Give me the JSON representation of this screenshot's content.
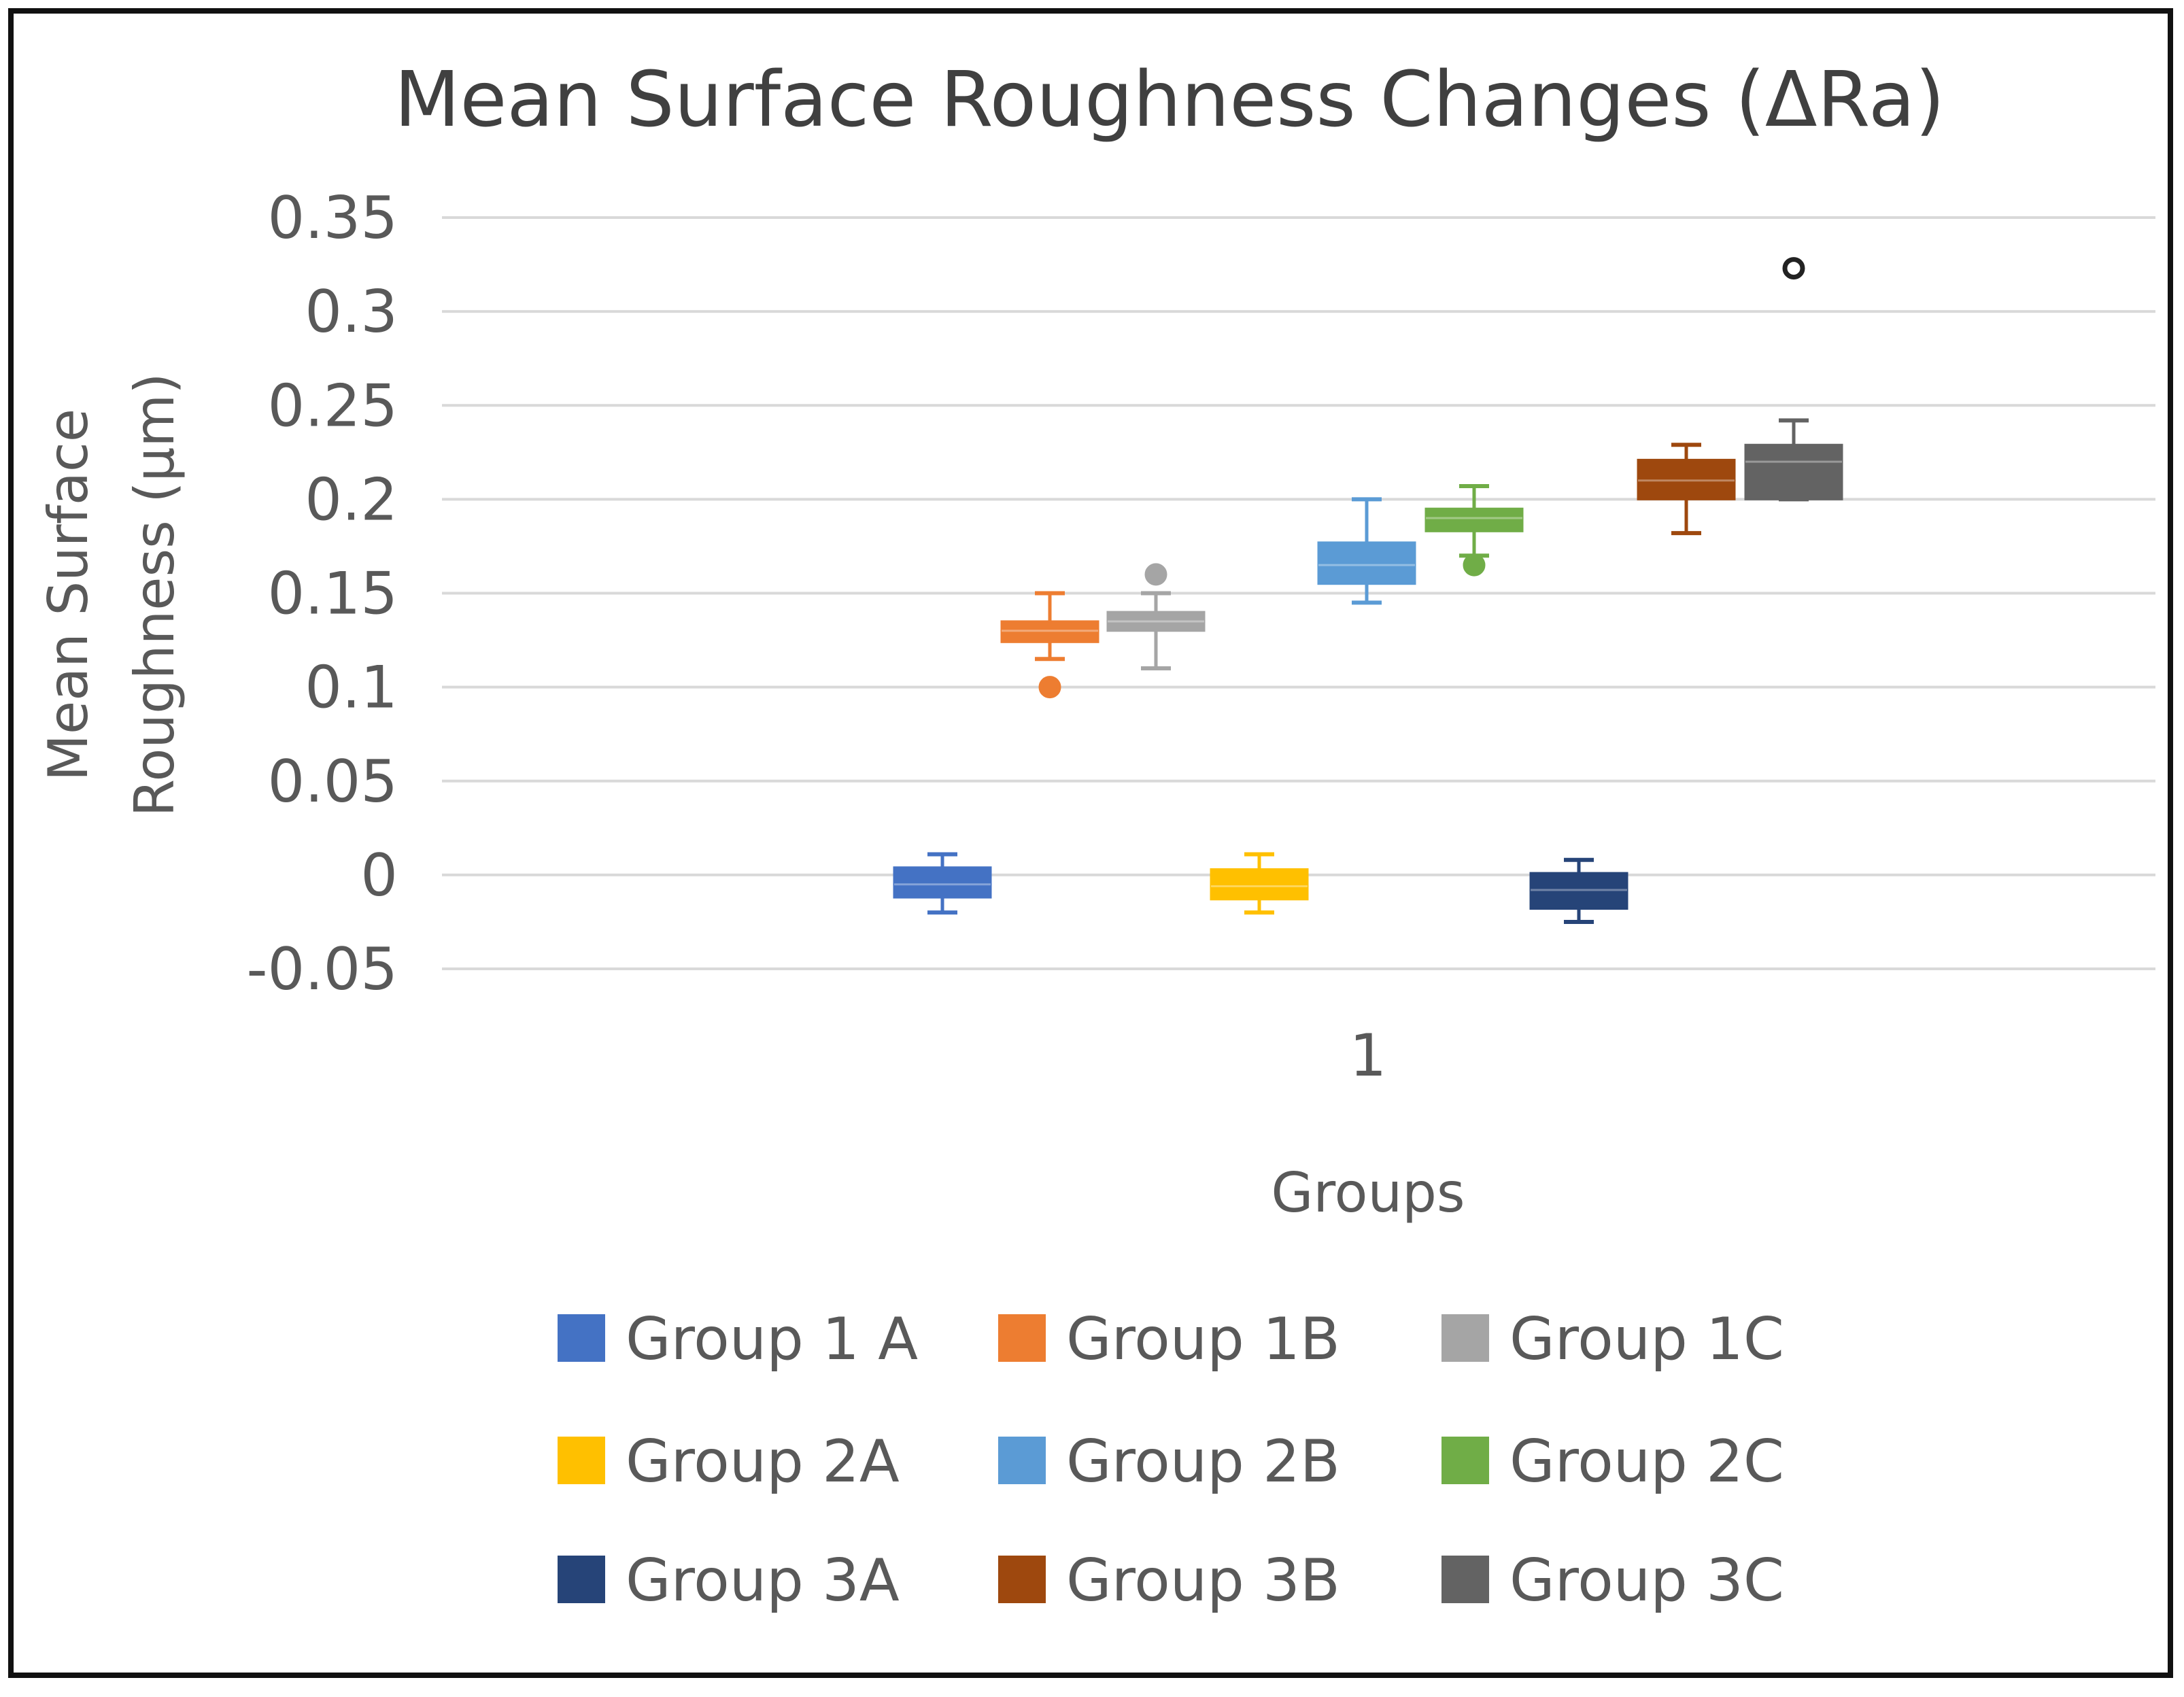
{
  "chart_data": {
    "type": "box",
    "title": "Mean Surface Roughness Changes (ΔRa)",
    "xlabel": "Groups",
    "ylabel_line1": "Mean Surface",
    "ylabel_line2": "Roughness (µm)",
    "ylim": [
      -0.05,
      0.35
    ],
    "yticks": [
      "0.35",
      "0.3",
      "0.25",
      "0.2",
      "0.15",
      "0.1",
      "0.05",
      "0",
      "-0.05"
    ],
    "categories": [
      "1"
    ],
    "grid": true,
    "legend_position": "bottom",
    "series": [
      {
        "name": "Group 1 A",
        "color": "#4472c4",
        "min": -0.02,
        "q1": -0.012,
        "median": -0.005,
        "q3": 0.004,
        "max": 0.011,
        "outliers": []
      },
      {
        "name": "Group 1B",
        "color": "#ed7d31",
        "min": 0.115,
        "q1": 0.124,
        "median": 0.13,
        "q3": 0.135,
        "max": 0.15,
        "outliers": [
          0.1
        ]
      },
      {
        "name": "Group 1C",
        "color": "#a5a5a5",
        "min": 0.11,
        "q1": 0.13,
        "median": 0.135,
        "q3": 0.14,
        "max": 0.15,
        "outliers": [
          0.16
        ]
      },
      {
        "name": "Group 2A",
        "color": "#ffc000",
        "min": -0.02,
        "q1": -0.013,
        "median": -0.006,
        "q3": 0.003,
        "max": 0.011,
        "outliers": []
      },
      {
        "name": "Group 2B",
        "color": "#5b9bd5",
        "min": 0.145,
        "q1": 0.155,
        "median": 0.165,
        "q3": 0.177,
        "max": 0.2,
        "outliers": []
      },
      {
        "name": "Group 2C",
        "color": "#70ad47",
        "min": 0.17,
        "q1": 0.183,
        "median": 0.19,
        "q3": 0.195,
        "max": 0.207,
        "outliers": [
          0.165
        ]
      },
      {
        "name": "Group 3A",
        "color": "#264478",
        "min": -0.025,
        "q1": -0.018,
        "median": -0.008,
        "q3": 0.001,
        "max": 0.008,
        "outliers": []
      },
      {
        "name": "Group 3B",
        "color": "#9e480e",
        "min": 0.182,
        "q1": 0.2,
        "median": 0.21,
        "q3": 0.221,
        "max": 0.229,
        "outliers": []
      },
      {
        "name": "Group 3C",
        "color": "#636363",
        "min": 0.2,
        "q1": 0.2,
        "median": 0.22,
        "q3": 0.229,
        "max": 0.242,
        "outliers": [
          0.323
        ]
      }
    ]
  }
}
